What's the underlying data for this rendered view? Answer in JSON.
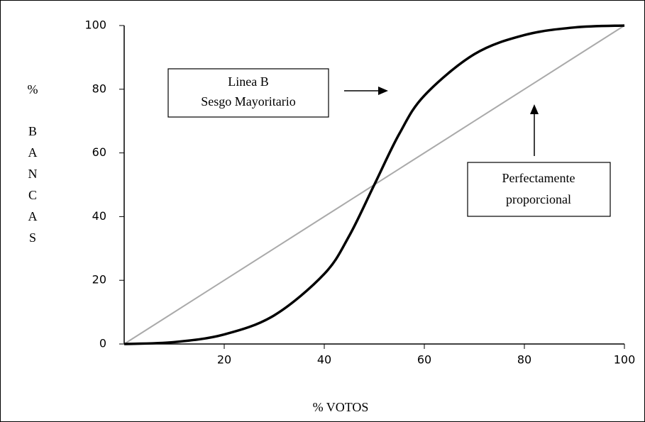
{
  "chart_data": {
    "type": "line",
    "x_label": "% VOTOS",
    "y_label": [
      "%",
      "BANCAS"
    ],
    "x": [
      0,
      10,
      20,
      30,
      40,
      45,
      50,
      55,
      60,
      70,
      80,
      90,
      100
    ],
    "series": [
      {
        "color": "#aaaaaa",
        "values": [
          0,
          10,
          20,
          30,
          40,
          45,
          50,
          55,
          60,
          70,
          80,
          90,
          100
        ]
      },
      {
        "color": "#000000",
        "values": [
          0,
          0.6,
          3,
          9,
          22,
          34,
          50,
          66,
          78,
          91,
          97,
          99.4,
          100
        ]
      }
    ],
    "xlim": [
      0,
      100
    ],
    "ylim": [
      0,
      100
    ],
    "xticks": [
      20,
      40,
      60,
      80,
      100
    ],
    "yticks": [
      0,
      20,
      40,
      60,
      80,
      100
    ],
    "annotations": [
      {
        "lines": [
          "Linea B",
          "Sesgo Mayoritario"
        ]
      },
      {
        "lines": [
          "Perfectamente",
          "proporcional"
        ]
      }
    ]
  }
}
